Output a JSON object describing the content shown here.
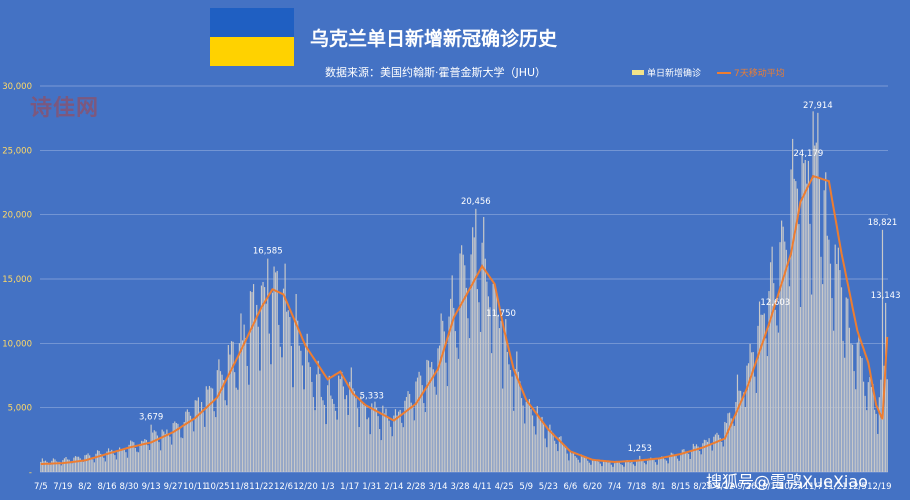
{
  "header": {
    "title": "乌克兰单日新增新冠确诊历史",
    "subtitle": "数据来源：美国约翰斯·霍普金斯大学（JHU）",
    "flag_colors": [
      "#1f5fc2",
      "#ffd200"
    ]
  },
  "legend": {
    "bar_label": "单日新增确诊",
    "line_label": "7天移动平均"
  },
  "watermarks": {
    "left": "诗佳网",
    "right": "搜狐号@雪鸮XueXiao"
  },
  "colors": {
    "background": "#4472c4",
    "bars": "#c9c9c9",
    "line": "#ed7d31",
    "axis_text": "#ffd966",
    "label_text": "#ffffff"
  },
  "chart_data": {
    "type": "bar",
    "title": "乌克兰单日新增新冠确诊历史",
    "ylim": [
      0,
      30000
    ],
    "y_ticks": [
      "-",
      "5,000",
      "10,000",
      "15,000",
      "20,000",
      "25,000",
      "30,000"
    ],
    "x_tick_labels": [
      "7/5",
      "7/19",
      "8/2",
      "8/16",
      "8/30",
      "9/13",
      "9/27",
      "10/11",
      "10/25",
      "11/8",
      "11/22",
      "12/6",
      "12/20",
      "1/3",
      "1/17",
      "1/31",
      "2/14",
      "2/28",
      "3/14",
      "3/28",
      "4/11",
      "4/25",
      "5/9",
      "5/23",
      "6/6",
      "6/20",
      "7/4",
      "7/18",
      "8/1",
      "8/15",
      "8/29",
      "9/12",
      "9/26",
      "10/10",
      "10/24",
      "11/7",
      "11/21",
      "12/5",
      "12/19"
    ],
    "x_tick_day_index": [
      0,
      14,
      28,
      42,
      56,
      70,
      84,
      98,
      112,
      126,
      140,
      154,
      168,
      182,
      196,
      210,
      224,
      238,
      252,
      266,
      280,
      294,
      308,
      322,
      336,
      350,
      364,
      378,
      392,
      406,
      420,
      434,
      448,
      462,
      476,
      490,
      504,
      518,
      532
    ],
    "total_days": 538,
    "series": [
      {
        "name": "单日新增确诊",
        "type": "bar",
        "anchors": [
          [
            0,
            850
          ],
          [
            14,
            950
          ],
          [
            28,
            1150
          ],
          [
            42,
            1500
          ],
          [
            56,
            2000
          ],
          [
            70,
            2700
          ],
          [
            84,
            3300
          ],
          [
            98,
            4800
          ],
          [
            112,
            6800
          ],
          [
            126,
            10000
          ],
          [
            140,
            14000
          ],
          [
            147,
            14800
          ],
          [
            154,
            13500
          ],
          [
            168,
            9500
          ],
          [
            180,
            6000
          ],
          [
            196,
            7000
          ],
          [
            205,
            5000
          ],
          [
            224,
            4200
          ],
          [
            238,
            6500
          ],
          [
            252,
            9500
          ],
          [
            266,
            14500
          ],
          [
            273,
            17000
          ],
          [
            280,
            16500
          ],
          [
            287,
            14500
          ],
          [
            294,
            10500
          ],
          [
            308,
            5500
          ],
          [
            322,
            3300
          ],
          [
            336,
            1500
          ],
          [
            350,
            900
          ],
          [
            364,
            700
          ],
          [
            378,
            800
          ],
          [
            392,
            1000
          ],
          [
            406,
            1400
          ],
          [
            420,
            2200
          ],
          [
            434,
            3500
          ],
          [
            448,
            8000
          ],
          [
            462,
            13500
          ],
          [
            476,
            22000
          ],
          [
            490,
            25000
          ],
          [
            504,
            16000
          ],
          [
            518,
            9000
          ],
          [
            532,
            5000
          ],
          [
            537,
            9000
          ]
        ]
      },
      {
        "name": "7天移动平均",
        "type": "line",
        "values_at_days": [
          [
            0,
            620
          ],
          [
            14,
            690
          ],
          [
            28,
            900
          ],
          [
            42,
            1400
          ],
          [
            56,
            1900
          ],
          [
            70,
            2300
          ],
          [
            84,
            3100
          ],
          [
            98,
            4200
          ],
          [
            112,
            5800
          ],
          [
            126,
            9200
          ],
          [
            140,
            12800
          ],
          [
            147,
            14200
          ],
          [
            154,
            13800
          ],
          [
            168,
            9800
          ],
          [
            182,
            7200
          ],
          [
            190,
            7800
          ],
          [
            198,
            6100
          ],
          [
            206,
            5200
          ],
          [
            224,
            4000
          ],
          [
            238,
            5300
          ],
          [
            252,
            8000
          ],
          [
            262,
            12000
          ],
          [
            272,
            14200
          ],
          [
            280,
            16000
          ],
          [
            288,
            14600
          ],
          [
            294,
            11000
          ],
          [
            300,
            8000
          ],
          [
            308,
            5600
          ],
          [
            322,
            3300
          ],
          [
            336,
            1600
          ],
          [
            350,
            950
          ],
          [
            364,
            780
          ],
          [
            378,
            880
          ],
          [
            392,
            1050
          ],
          [
            406,
            1400
          ],
          [
            420,
            1900
          ],
          [
            434,
            2600
          ],
          [
            448,
            6500
          ],
          [
            462,
            11500
          ],
          [
            476,
            17000
          ],
          [
            482,
            21000
          ],
          [
            490,
            23000
          ],
          [
            500,
            22600
          ],
          [
            508,
            17000
          ],
          [
            518,
            11000
          ],
          [
            525,
            8500
          ],
          [
            530,
            5200
          ],
          [
            534,
            4100
          ],
          [
            537,
            10500
          ]
        ]
      }
    ],
    "annotations": [
      {
        "day": 70,
        "value": 3679,
        "text": "3,679"
      },
      {
        "day": 144,
        "value": 16585,
        "text": "16,585"
      },
      {
        "day": 210,
        "value": 5333,
        "text": "5,333"
      },
      {
        "day": 276,
        "value": 20456,
        "text": "20,456"
      },
      {
        "day": 292,
        "value": 11750,
        "text": "11,750"
      },
      {
        "day": 380,
        "value": 1253,
        "text": "1,253"
      },
      {
        "day": 466,
        "value": 12603,
        "text": "12,603"
      },
      {
        "day": 487,
        "value": 24179,
        "text": "24,179"
      },
      {
        "day": 493,
        "value": 27914,
        "text": "27,914"
      },
      {
        "day": 534,
        "value": 18821,
        "text": "18,821"
      },
      {
        "day": 536,
        "value": 13143,
        "text": "13,143"
      }
    ]
  }
}
